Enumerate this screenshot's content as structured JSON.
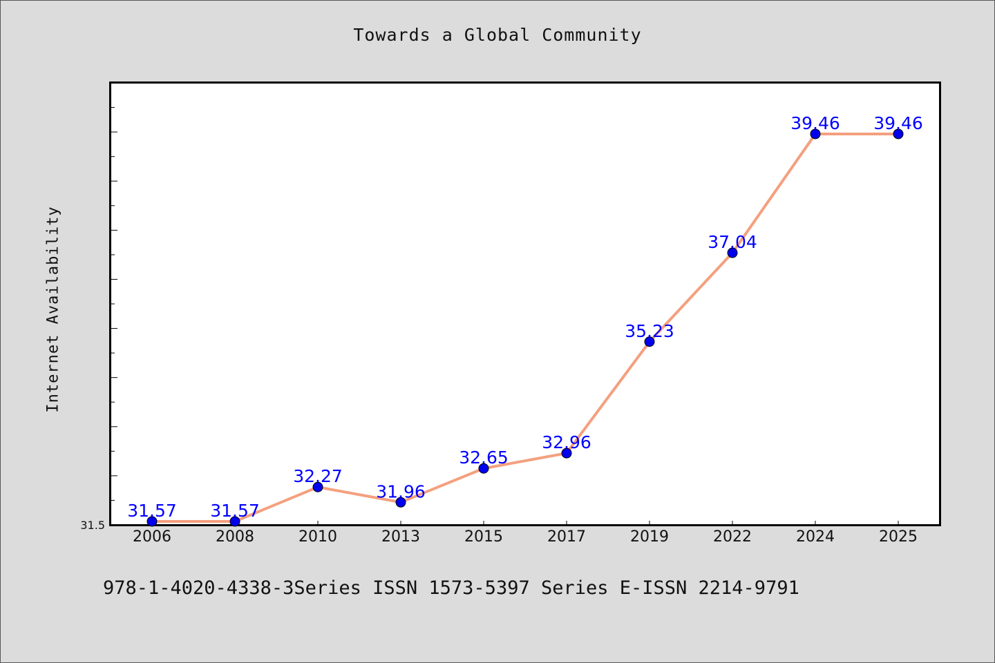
{
  "page": {
    "title": "Towards a Global Community",
    "footer": "978-1-4020-4338-3Series ISSN 1573-5397 Series E-ISSN 2214-9791"
  },
  "chart_data": {
    "type": "line",
    "title": "Towards a Global Community",
    "xlabel": "",
    "ylabel": "Internet Availability",
    "categories": [
      "2006",
      "2008",
      "2010",
      "2013",
      "2015",
      "2017",
      "2019",
      "2022",
      "2024",
      "2025"
    ],
    "series": [
      {
        "values": [
          31.57,
          31.57,
          32.27,
          31.96,
          32.65,
          32.96,
          35.23,
          37.04,
          39.46,
          39.46
        ],
        "labels": [
          "31.57",
          "31.57",
          "32.27",
          "31.96",
          "32.65",
          "32.96",
          "35.23",
          "37.04",
          "39.46",
          "39.46"
        ],
        "line_color": "#f4a07f",
        "marker_color": "#0000ee"
      }
    ],
    "ylim": [
      31.5,
      40.5
    ],
    "yticks_labeled": [
      "31.5"
    ],
    "grid": false,
    "legend": "none",
    "data_label_color": "#0000ff"
  }
}
